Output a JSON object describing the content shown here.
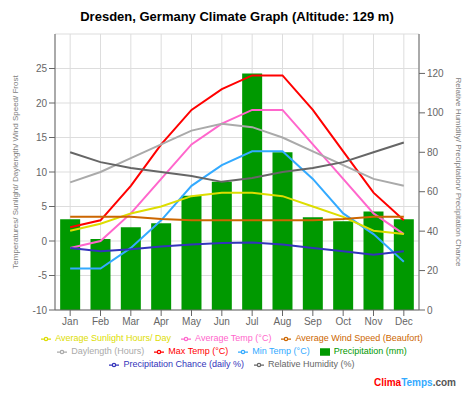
{
  "chart_data": {
    "type": "bar",
    "title": "Dresden, Germany Climate Graph (Altitude: 129 m)",
    "y_label": "Temperatures/ Sunlight/ Daylength/ Wind Speed/ Frost",
    "y2_label": "Relative Humidity/ Precipitation/ Precipitation Chance",
    "categories": [
      "Jan",
      "Feb",
      "Mar",
      "Apr",
      "May",
      "Jun",
      "Jul",
      "Aug",
      "Sep",
      "Oct",
      "Nov",
      "Dec"
    ],
    "series": [
      {
        "name": "Precipitation (mm)",
        "type": "bar",
        "axis": "y2",
        "color": "#009900",
        "values": [
          46,
          36,
          42,
          44,
          58,
          65,
          120,
          80,
          47,
          45,
          50,
          46
        ]
      },
      {
        "name": "Min Temp (°C)",
        "type": "line",
        "color": "#33aaff",
        "values": [
          -4,
          -4,
          -1,
          3,
          8,
          11,
          13,
          13,
          9,
          4,
          1,
          -3
        ]
      },
      {
        "name": "Max Temp (°C)",
        "type": "line",
        "color": "#ff0000",
        "values": [
          2,
          3,
          8,
          14,
          19,
          22,
          24,
          24,
          19,
          13,
          7,
          3
        ]
      },
      {
        "name": "Average Temp (°C)",
        "type": "line",
        "color": "#ff66cc",
        "values": [
          -1,
          0,
          4,
          9,
          14,
          17,
          19,
          19,
          14,
          9,
          4,
          1
        ]
      },
      {
        "name": "Average Sunlight Hours/ Day",
        "type": "line",
        "color": "#dddd00",
        "values": [
          1.5,
          2.5,
          4,
          5,
          6.5,
          7,
          7,
          6.5,
          5,
          3.5,
          1.5,
          1
        ]
      },
      {
        "name": "Average Wind Speed (Beaufort)",
        "type": "line",
        "color": "#cc6600",
        "values": [
          3.5,
          3.5,
          3.5,
          3.2,
          3,
          3,
          3,
          3,
          3,
          3.2,
          3.5,
          3.5
        ]
      },
      {
        "name": "Daylength (Hours)",
        "type": "line",
        "color": "#aaaaaa",
        "values": [
          8.5,
          10,
          12,
          14,
          16,
          17,
          16.5,
          15,
          13,
          11,
          9,
          8
        ]
      },
      {
        "name": "Precipitation Chance (daily %)",
        "type": "line",
        "color": "#3333bb",
        "values": [
          -1.0,
          -1.5,
          -1.2,
          -0.8,
          -0.5,
          -0.3,
          -0.2,
          -0.5,
          -1.0,
          -1.5,
          -2.0,
          -1.5
        ]
      },
      {
        "name": "Relative Humidity (%)",
        "type": "line",
        "axis": "y2",
        "color": "#666666",
        "values": [
          80,
          75,
          72,
          70,
          68,
          65,
          67,
          70,
          72,
          75,
          80,
          85
        ]
      }
    ],
    "ylim": [
      -10,
      30
    ],
    "yticks": [
      -10,
      -5,
      0,
      5,
      10,
      15,
      20,
      25
    ],
    "y2lim": [
      0,
      140
    ],
    "y2ticks": [
      0,
      20,
      40,
      60,
      80,
      100,
      120
    ],
    "grid": true,
    "legend": "bottom",
    "annotations": [
      {
        "text": "Clima",
        "color": "#ff0000"
      },
      {
        "text": "Temps",
        "color": "#33aaff"
      },
      {
        "text": ".com",
        "color": "#555555"
      }
    ]
  }
}
